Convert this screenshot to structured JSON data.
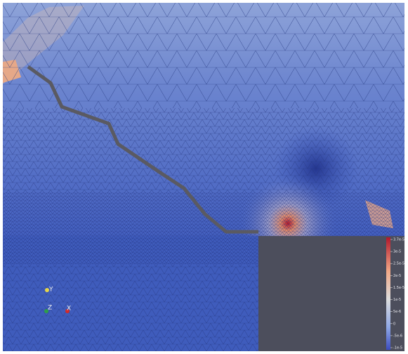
{
  "axes_triad": {
    "y": "Y",
    "z": "Z",
    "x": "X"
  },
  "colorbar": {
    "labels": [
      "3.7e-5",
      "3e-5",
      "2.5e-5",
      "2e-5",
      "1.5e-5",
      "1e-5",
      "5e-6",
      "0",
      "-5e-6",
      "-1e-5"
    ]
  }
}
